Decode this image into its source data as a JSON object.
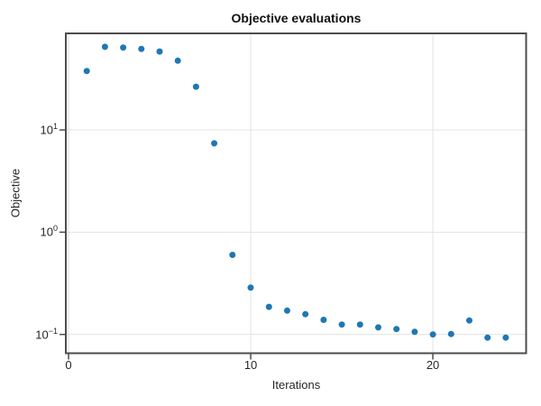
{
  "figure": {
    "background": "#ffffff"
  },
  "chart_data": {
    "type": "scatter",
    "title": "Objective evaluations",
    "xlabel": "Iterations",
    "ylabel": "Objective",
    "x": [
      1,
      2,
      3,
      4,
      5,
      6,
      7,
      8,
      9,
      10,
      11,
      12,
      13,
      14,
      15,
      16,
      17,
      18,
      19,
      20,
      21,
      22,
      23,
      24
    ],
    "y": [
      37.7,
      65,
      64,
      62,
      58.5,
      47.5,
      26.5,
      7.4,
      0.6,
      0.287,
      0.186,
      0.171,
      0.158,
      0.139,
      0.125,
      0.125,
      0.117,
      0.113,
      0.106,
      0.1,
      0.101,
      0.137,
      0.093,
      0.093
    ],
    "x_ticks": [
      {
        "value": 0,
        "label": "0"
      },
      {
        "value": 10,
        "label": "10"
      },
      {
        "value": 20,
        "label": "20"
      }
    ],
    "y_ticks": [
      {
        "value": 10,
        "base": "10",
        "exp": "1"
      },
      {
        "value": 1,
        "base": "10",
        "exp": "0"
      },
      {
        "value": 0.1,
        "base": "10",
        "exp": "−1"
      }
    ],
    "xlim": [
      -0.15,
      25.12
    ],
    "ylim": [
      0.0655,
      88
    ],
    "y_scale": "log",
    "grid": true,
    "legend": null,
    "marker_color": "#1f77b4",
    "marker_radius": 3.5,
    "spine_color": "#4d4d4d",
    "grid_color": "#e3e3e3",
    "text_color": "#262626"
  }
}
